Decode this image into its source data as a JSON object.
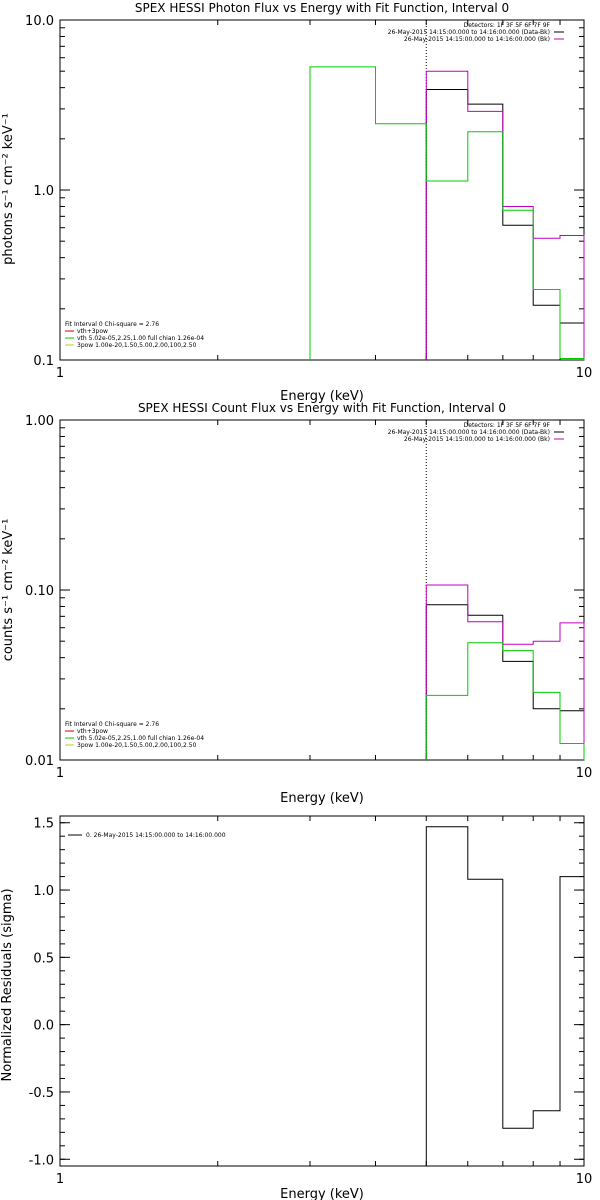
{
  "chart_data": [
    {
      "type": "line",
      "title": "SPEX HESSI Photon Flux vs Energy with Fit Function, Interval 0",
      "xlabel": "Energy (keV)",
      "ylabel": "photons s⁻¹ cm⁻² keV⁻¹",
      "xscale": "log",
      "yscale": "log",
      "xlim": [
        1,
        10
      ],
      "ylim": [
        0.1,
        10
      ],
      "xticks": [
        {
          "v": 1,
          "label": "1"
        },
        {
          "v": 10,
          "label": "10"
        }
      ],
      "yticks": [
        {
          "v": 0.1,
          "label": "0.1"
        },
        {
          "v": 1,
          "label": "1.0"
        },
        {
          "v": 10,
          "label": "10.0"
        }
      ],
      "vline": 5,
      "info_lines": [
        {
          "text": "Detectors: 1F 3F 5F 6F 7F 9F",
          "color": ""
        },
        {
          "text": "26-May-2015 14:15:00.000 to 14:16:00.000 (Data-Bk)",
          "color": "#000000"
        },
        {
          "text": "26-May-2015 14:15:00.000 to 14:16:00.000 (Bk)",
          "color": "#c000c0"
        }
      ],
      "fit_lines": [
        {
          "text": "Fit Interval 0   Chi-square = 2.76",
          "color": ""
        },
        {
          "text": "vth+3pow",
          "color": "#cc0000"
        },
        {
          "text": "vth 5.02e-05,2.25,1.00  full chian 1.26e-04",
          "color": "#00cc00"
        },
        {
          "text": "3pow 1.00e-20,1.50,5.00,2.00,100,2.50",
          "color": "#cccc00"
        }
      ],
      "series": [
        {
          "name": "Data-Bk",
          "color": "#000000",
          "edges": [
            5,
            6,
            7,
            8,
            9,
            10
          ],
          "values": [
            3.9,
            3.2,
            0.62,
            0.21,
            0.165
          ]
        },
        {
          "name": "Bk",
          "color": "#c000c0",
          "edges": [
            5,
            6,
            7,
            8,
            9,
            10
          ],
          "values": [
            5.0,
            2.9,
            0.8,
            0.52,
            0.54
          ]
        },
        {
          "name": "vth",
          "color": "#00cc00",
          "edges": [
            3,
            4,
            5,
            6,
            7,
            8,
            9,
            10
          ],
          "values": [
            5.3,
            2.45,
            1.13,
            2.2,
            0.76,
            0.26,
            0.102
          ]
        }
      ]
    },
    {
      "type": "line",
      "title": "SPEX HESSI Count Flux vs Energy with Fit Function, Interval 0",
      "xlabel": "Energy (keV)",
      "ylabel": "counts s⁻¹ cm⁻² keV⁻¹",
      "xscale": "log",
      "yscale": "log",
      "xlim": [
        1,
        10
      ],
      "ylim": [
        0.01,
        1
      ],
      "xticks": [
        {
          "v": 1,
          "label": "1"
        },
        {
          "v": 10,
          "label": "10"
        }
      ],
      "yticks": [
        {
          "v": 0.01,
          "label": "0.01"
        },
        {
          "v": 0.1,
          "label": "0.10"
        },
        {
          "v": 1,
          "label": "1.00"
        }
      ],
      "vline": 5,
      "info_lines": [
        {
          "text": "Detectors: 1F 3F 5F 6F 7F 9F",
          "color": ""
        },
        {
          "text": "26-May-2015 14:15:00.000 to 14:16:00.000 (Data-Bk)",
          "color": "#000000"
        },
        {
          "text": "26-May-2015 14:15:00.000 to 14:16:00.000 (Bk)",
          "color": "#c000c0"
        }
      ],
      "fit_lines": [
        {
          "text": "Fit Interval 0   Chi-square = 2.76",
          "color": ""
        },
        {
          "text": "vth+3pow",
          "color": "#cc0000"
        },
        {
          "text": "vth 5.02e-05,2.25,1.00  full chian 1.26e-04",
          "color": "#00cc00"
        },
        {
          "text": "3pow 1.00e-20,1.50,5.00,2.00,100,2.50",
          "color": "#cccc00"
        }
      ],
      "series": [
        {
          "name": "Data-Bk",
          "color": "#000000",
          "edges": [
            5,
            6,
            7,
            8,
            9,
            10
          ],
          "values": [
            0.082,
            0.071,
            0.038,
            0.02,
            0.0195
          ]
        },
        {
          "name": "Bk",
          "color": "#c000c0",
          "edges": [
            5,
            6,
            7,
            8,
            9,
            10
          ],
          "values": [
            0.107,
            0.065,
            0.048,
            0.05,
            0.064
          ]
        },
        {
          "name": "vth",
          "color": "#00cc00",
          "edges": [
            5,
            6,
            7,
            8,
            9,
            10
          ],
          "values": [
            0.024,
            0.049,
            0.044,
            0.025,
            0.0125
          ]
        }
      ]
    },
    {
      "type": "line",
      "title": "",
      "xlabel": "Energy (keV)",
      "ylabel": "Normalized Residuals (sigma)",
      "xscale": "log",
      "yscale": "linear",
      "xlim": [
        1,
        10
      ],
      "ylim": [
        -1.05,
        1.55
      ],
      "xticks": [
        {
          "v": 1,
          "label": "1"
        },
        {
          "v": 10,
          "label": "10"
        }
      ],
      "yticks": [
        {
          "v": -1.0,
          "label": "-1.0"
        },
        {
          "v": -0.5,
          "label": "-0.5"
        },
        {
          "v": 0.0,
          "label": "0.0"
        },
        {
          "v": 0.5,
          "label": "0.5"
        },
        {
          "v": 1.0,
          "label": "1.0"
        },
        {
          "v": 1.5,
          "label": "1.5"
        }
      ],
      "vline": null,
      "info_lines": [],
      "fit_lines": [],
      "legend_lines": [
        {
          "text": "0. 26-May-2015 14:15:00.000 to 14:16:00.000",
          "color": "#000000"
        }
      ],
      "series": [
        {
          "name": "0. 26-May-2015 14:15:00.000 to 14:16:00.000",
          "color": "#000000",
          "edges": [
            5,
            6,
            7,
            8,
            9,
            10
          ],
          "values": [
            1.47,
            1.08,
            -0.77,
            -0.64,
            1.1
          ]
        }
      ]
    }
  ]
}
